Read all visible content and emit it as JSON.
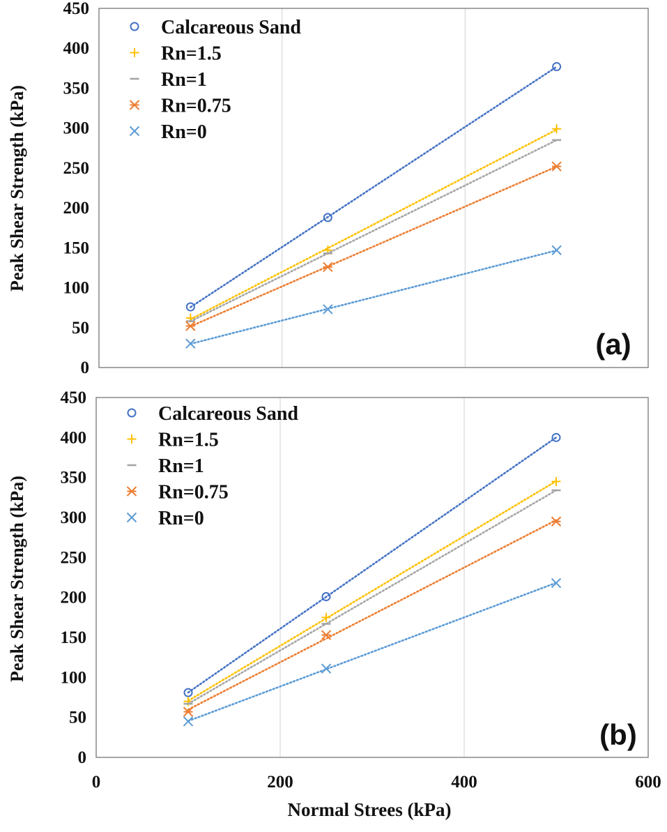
{
  "chart_data": [
    {
      "type": "scatter",
      "panel_label": "(a)",
      "ylabel": "Peak Shear Strength (kPa)",
      "xlabel": "",
      "xlim": [
        0,
        600
      ],
      "ylim": [
        0,
        450
      ],
      "x_ticks": [],
      "y_ticks": [
        "0",
        "50",
        "100",
        "150",
        "200",
        "250",
        "300",
        "350",
        "400",
        "450"
      ],
      "grid": true,
      "trendlines": "linear, dotted",
      "legend_position": "top-left",
      "series": [
        {
          "name": "Calcareous Sand",
          "marker": "circle",
          "color": "#4472C4",
          "x": [
            100,
            250,
            500
          ],
          "y": [
            76,
            188,
            377
          ]
        },
        {
          "name": "Rn=1.5",
          "marker": "plus",
          "color": "#FFC000",
          "x": [
            100,
            250,
            500
          ],
          "y": [
            62,
            147,
            299
          ]
        },
        {
          "name": "Rn=1",
          "marker": "dash",
          "color": "#A5A5A5",
          "x": [
            100,
            250,
            500
          ],
          "y": [
            58,
            143,
            285
          ]
        },
        {
          "name": "Rn=0.75",
          "marker": "star",
          "color": "#ED7D31",
          "x": [
            100,
            250,
            500
          ],
          "y": [
            52,
            126,
            252
          ]
        },
        {
          "name": "Rn=0",
          "marker": "x",
          "color": "#5B9BD5",
          "x": [
            100,
            250,
            500
          ],
          "y": [
            30,
            73,
            147
          ]
        }
      ]
    },
    {
      "type": "scatter",
      "panel_label": "(b)",
      "ylabel": "Peak Shear Strength (kPa)",
      "xlabel": "Normal Strees (kPa)",
      "xlim": [
        0,
        600
      ],
      "ylim": [
        0,
        450
      ],
      "x_ticks": [
        "0",
        "200",
        "400",
        "600"
      ],
      "y_ticks": [
        "0",
        "50",
        "100",
        "150",
        "200",
        "250",
        "300",
        "350",
        "400",
        "450"
      ],
      "grid": true,
      "trendlines": "linear, dotted",
      "legend_position": "top-left",
      "series": [
        {
          "name": "Calcareous Sand",
          "marker": "circle",
          "color": "#4472C4",
          "x": [
            100,
            250,
            500
          ],
          "y": [
            81,
            201,
            400
          ]
        },
        {
          "name": "Rn=1.5",
          "marker": "plus",
          "color": "#FFC000",
          "x": [
            100,
            250,
            500
          ],
          "y": [
            70,
            175,
            345
          ]
        },
        {
          "name": "Rn=1",
          "marker": "dash",
          "color": "#A5A5A5",
          "x": [
            100,
            250,
            500
          ],
          "y": [
            67,
            167,
            334
          ]
        },
        {
          "name": "Rn=0.75",
          "marker": "star",
          "color": "#ED7D31",
          "x": [
            100,
            250,
            500
          ],
          "y": [
            57,
            153,
            295
          ]
        },
        {
          "name": "Rn=0",
          "marker": "x",
          "color": "#5B9BD5",
          "x": [
            100,
            250,
            500
          ],
          "y": [
            45,
            111,
            218
          ]
        }
      ]
    }
  ]
}
